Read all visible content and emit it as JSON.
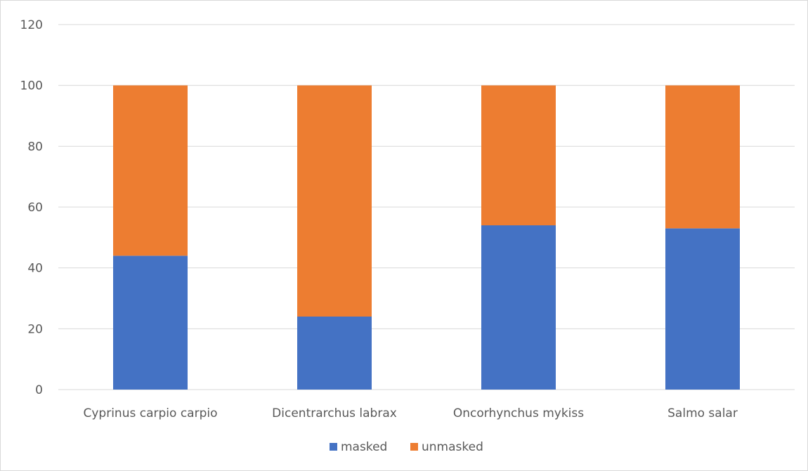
{
  "chart_data": {
    "type": "bar",
    "stacked": true,
    "title": "",
    "xlabel": "",
    "ylabel": "",
    "ylim": [
      0,
      120
    ],
    "yticks": [
      0,
      20,
      40,
      60,
      80,
      100,
      120
    ],
    "grid": true,
    "legend_position": "bottom",
    "categories": [
      "Cyprinus carpio carpio",
      "Dicentrarchus labrax",
      "Oncorhynchus mykiss",
      "Salmo salar"
    ],
    "series": [
      {
        "name": "masked",
        "color": "#4472C4",
        "values": [
          44,
          24,
          54,
          53
        ]
      },
      {
        "name": "unmasked",
        "color": "#ED7D31",
        "values": [
          56,
          76,
          46,
          47
        ]
      }
    ]
  }
}
